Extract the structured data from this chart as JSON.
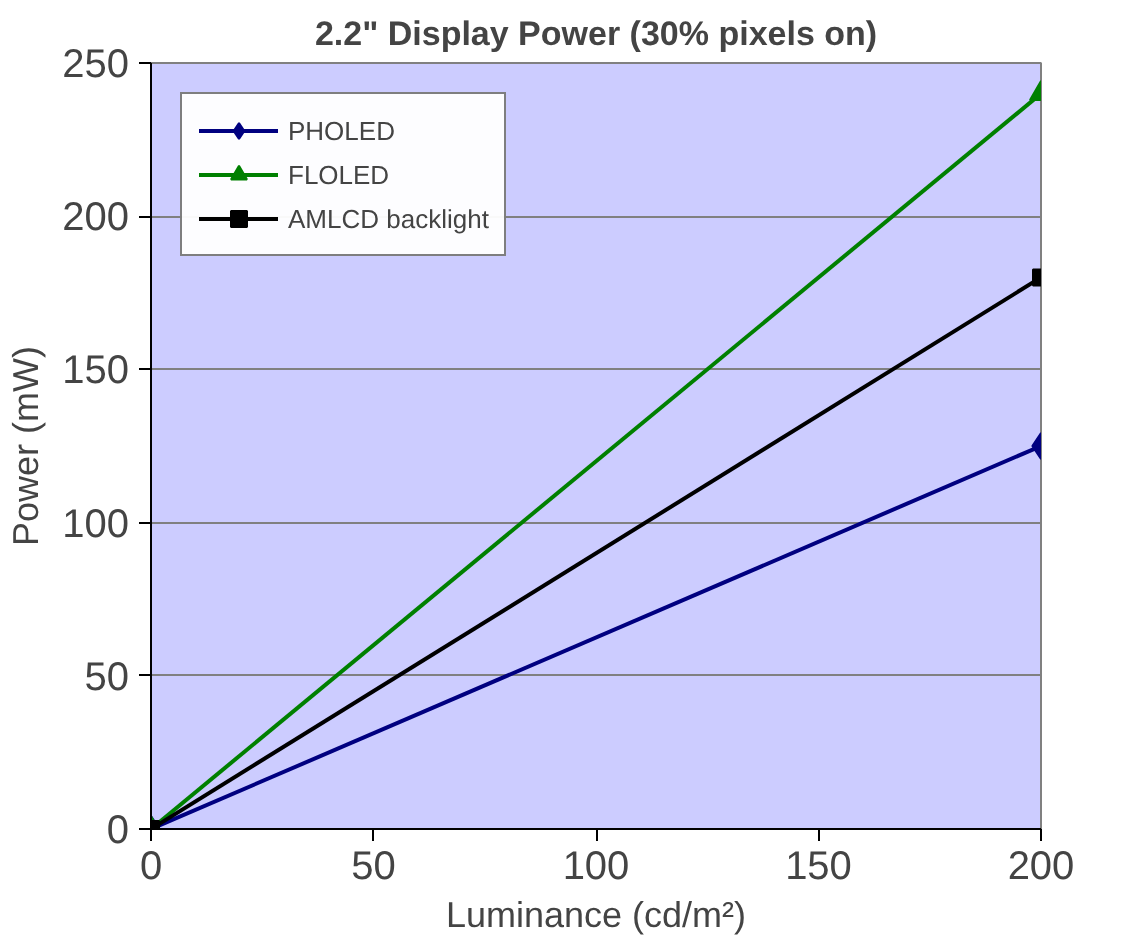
{
  "chart_data": {
    "type": "line",
    "title": "2.2\" Display Power (30% pixels on)",
    "xlabel": "Luminance (cd/m²)",
    "ylabel": "Power (mW)",
    "x": [
      0,
      200
    ],
    "xlim": [
      0,
      200
    ],
    "xticks": [
      0,
      50,
      100,
      150,
      200
    ],
    "ylim": [
      0,
      250
    ],
    "yticks": [
      0,
      50,
      100,
      150,
      200,
      250
    ],
    "grid": "y",
    "legend": "top left",
    "series": [
      {
        "name": "PHOLED",
        "color": "#000080",
        "marker": "diamond",
        "values": [
          0,
          125
        ]
      },
      {
        "name": "FLOLED",
        "color": "#008000",
        "marker": "triangle",
        "values": [
          0,
          240
        ]
      },
      {
        "name": "AMLCD backlight",
        "color": "#000000",
        "marker": "square",
        "values": [
          0,
          180
        ]
      }
    ]
  }
}
